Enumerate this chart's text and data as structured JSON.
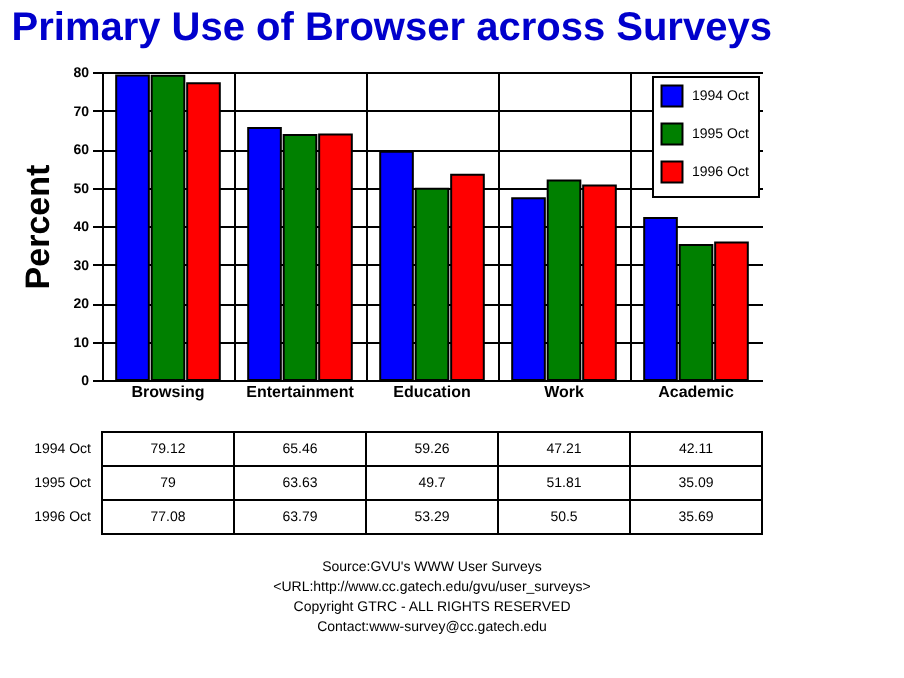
{
  "chart_data": {
    "type": "bar",
    "title": "Primary Use of Browser across Surveys",
    "ylabel": "Percent",
    "categories": [
      "Browsing",
      "Entertainment",
      "Education",
      "Work",
      "Academic"
    ],
    "series": [
      {
        "name": "1994 Oct",
        "color": "#0000ff",
        "values": [
          79.12,
          65.46,
          59.26,
          47.21,
          42.11
        ]
      },
      {
        "name": "1995 Oct",
        "color": "#008000",
        "values": [
          79,
          63.63,
          49.7,
          51.81,
          35.09
        ]
      },
      {
        "name": "1996 Oct",
        "color": "#ff0000",
        "values": [
          77.08,
          63.79,
          53.29,
          50.5,
          35.69
        ]
      }
    ],
    "ylim": [
      0,
      80
    ],
    "yticks": [
      0,
      10,
      20,
      30,
      40,
      50,
      60,
      70,
      80
    ],
    "grid": true,
    "legend": "top right",
    "data_labels": true,
    "annotations": [
      "Source:GVU's WWW User Surveys",
      "<URL:http://www.cc.gatech.edu/gvu/user_surveys>",
      "Copyright GTRC - ALL RIGHTS RESERVED",
      "Contact:www-survey@cc.gatech.edu"
    ]
  }
}
